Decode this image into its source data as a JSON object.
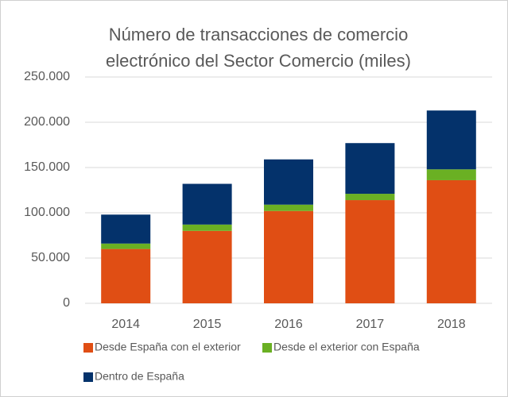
{
  "chart_data": {
    "type": "stacked_bar",
    "title": [
      "Número de transacciones de comercio",
      "electrónico del Sector Comercio (miles)"
    ],
    "categories": [
      "2014",
      "2015",
      "2016",
      "2017",
      "2018"
    ],
    "series": [
      {
        "name": "Desde España con el exterior",
        "color": "#e04e14",
        "values": [
          60000,
          80000,
          102000,
          114000,
          136000
        ]
      },
      {
        "name": "Desde el exterior con España",
        "color": "#6ab023",
        "values": [
          6000,
          7000,
          7000,
          7000,
          12000
        ]
      },
      {
        "name": "Dentro de España",
        "color": "#04326b",
        "values": [
          32000,
          45000,
          50000,
          56000,
          65000
        ]
      }
    ],
    "ylim": [
      0,
      250000
    ],
    "yticks": [
      0,
      {
        "value": 50000,
        "label": "50.000"
      },
      {
        "value": 100000,
        "label": "100.000"
      },
      {
        "value": 150000,
        "label": "150.000"
      },
      {
        "value": 200000,
        "label": "200.000"
      },
      {
        "value": 250000,
        "label": "250.000"
      }
    ],
    "grid": true,
    "legend": "bottom"
  }
}
